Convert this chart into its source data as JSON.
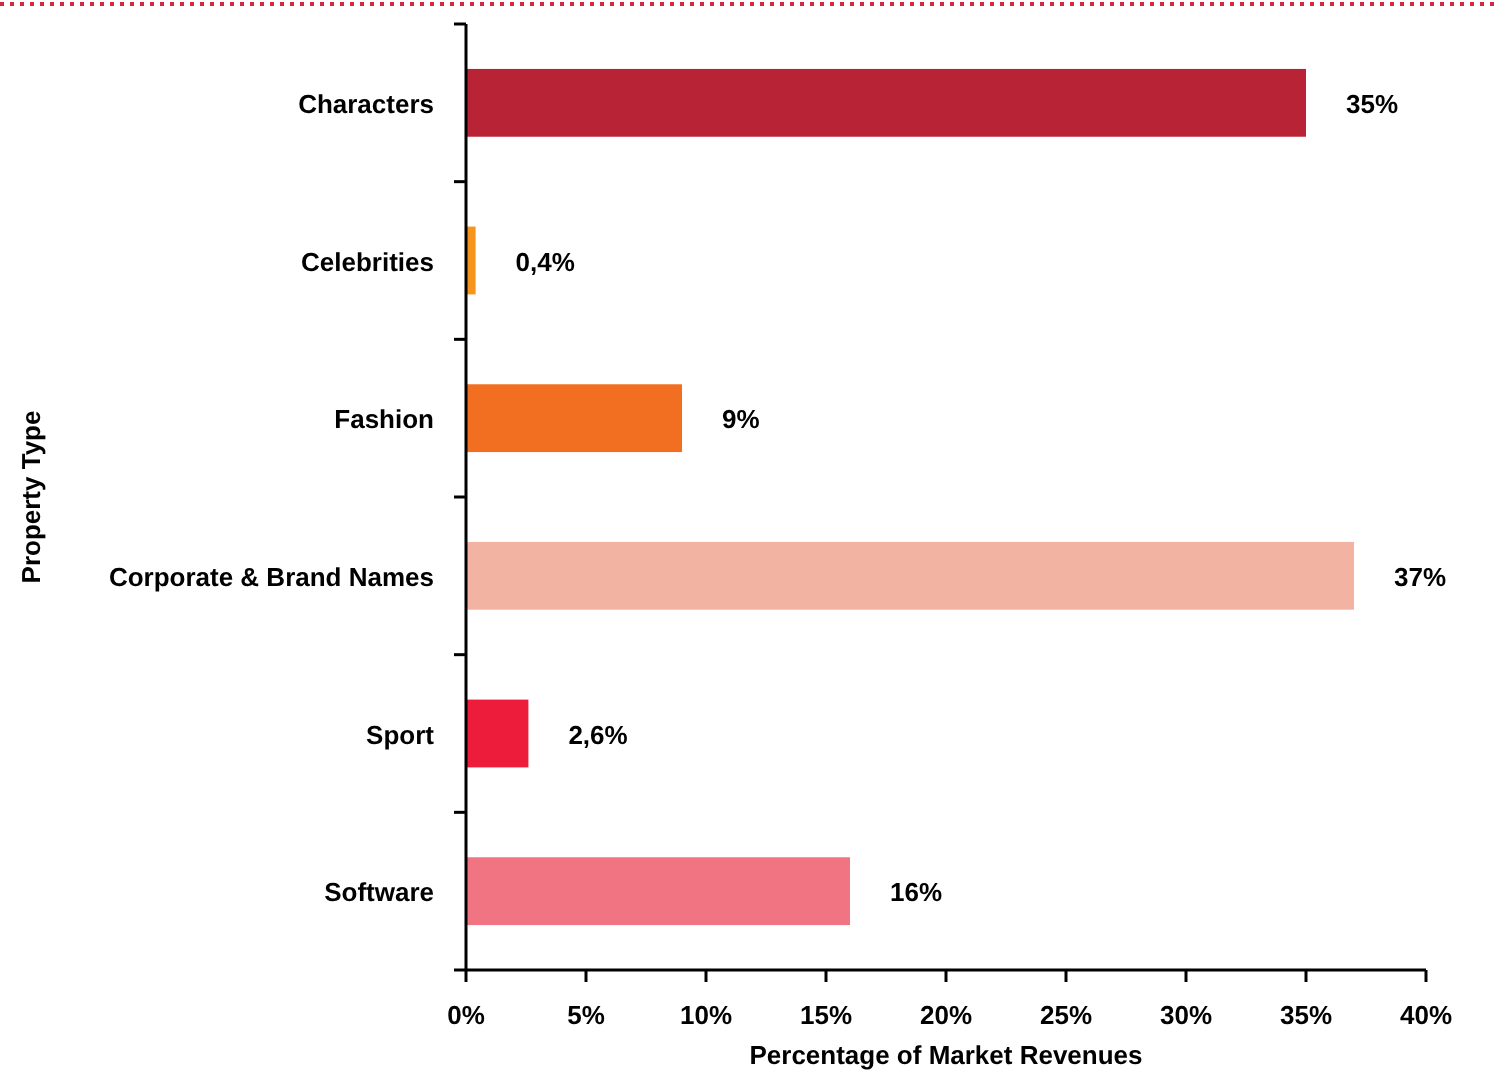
{
  "chart_data": {
    "type": "bar",
    "orientation": "horizontal",
    "categories": [
      "Characters",
      "Celebrities",
      "Fashion",
      "Corporate & Brand Names",
      "Sport",
      "Software"
    ],
    "values": [
      35,
      0.4,
      9,
      37,
      2.6,
      16
    ],
    "colors": [
      "#b82436",
      "#f7941d",
      "#f26f21",
      "#f3b3a3",
      "#ee1c3b",
      "#f07482"
    ],
    "value_labels": [
      "35%",
      "0,4%",
      "9%",
      "37%",
      "2,6%",
      "16%"
    ],
    "xlim": [
      0,
      40
    ],
    "xticks": [
      {
        "value": 0,
        "label": "0%"
      },
      {
        "value": 5,
        "label": "5%"
      },
      {
        "value": 10,
        "label": "10%"
      },
      {
        "value": 15,
        "label": "15%"
      },
      {
        "value": 20,
        "label": "20%"
      },
      {
        "value": 25,
        "label": "25%"
      },
      {
        "value": 30,
        "label": "30%"
      },
      {
        "value": 35,
        "label": "35%"
      },
      {
        "value": 40,
        "label": "40%"
      }
    ],
    "xlabel": "Percentage of Market Revenues",
    "ylabel": "Property Type",
    "grid": false
  }
}
